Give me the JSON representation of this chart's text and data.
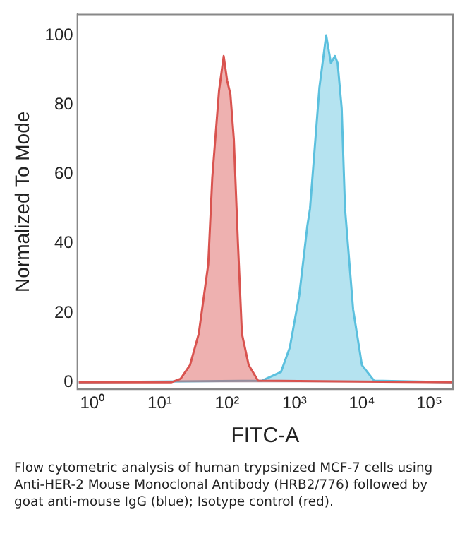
{
  "chart_data": {
    "type": "area",
    "xlabel": "FITC-A",
    "ylabel": "Normalized To Mode",
    "log": "x",
    "xlim": [
      0.63,
      224000
    ],
    "xticks": [
      {
        "value": 1,
        "label": "10⁰"
      },
      {
        "value": 10,
        "label": "10¹"
      },
      {
        "value": 100,
        "label": "10²"
      },
      {
        "value": 1000,
        "label": "10³"
      },
      {
        "value": 10000,
        "label": "10⁴"
      },
      {
        "value": 100000,
        "label": "10⁵"
      }
    ],
    "ylim": [
      -2,
      106
    ],
    "yticks": [
      0,
      20,
      40,
      60,
      80,
      100
    ],
    "grid": false,
    "legend": false,
    "marker": "none",
    "line_style": "solid",
    "series": [
      {
        "color": "#d9534f",
        "x": [
          0.63,
          14.8,
          20.4,
          28.2,
          38.0,
          52.5,
          60.3,
          75.9,
          89.1,
          100,
          112,
          126,
          145,
          166,
          209,
          288,
          224000
        ],
        "values": [
          0,
          0,
          1,
          5,
          14,
          34,
          59,
          84,
          94,
          87,
          83,
          70,
          40,
          14,
          5,
          0.5,
          0
        ]
      },
      {
        "color": "#5bc0de",
        "x": [
          0.63,
          331,
          631,
          851,
          1175,
          1549,
          1698,
          2344,
          2951,
          3467,
          3981,
          4365,
          5012,
          5623,
          7413,
          10000,
          15136,
          224000
        ],
        "values": [
          0,
          0.5,
          3,
          10,
          25,
          45,
          50,
          85,
          100,
          92,
          94,
          92,
          79,
          50,
          21,
          5,
          0.5,
          0
        ]
      }
    ],
    "annotations": [
      "Flow cytometric analysis of human trypsinized MCF-7 cells using Anti-HER-2 Mouse Monoclonal Antibody (HRB2/776) followed by goat anti-mouse IgG (blue); Isotype control (red)."
    ]
  }
}
